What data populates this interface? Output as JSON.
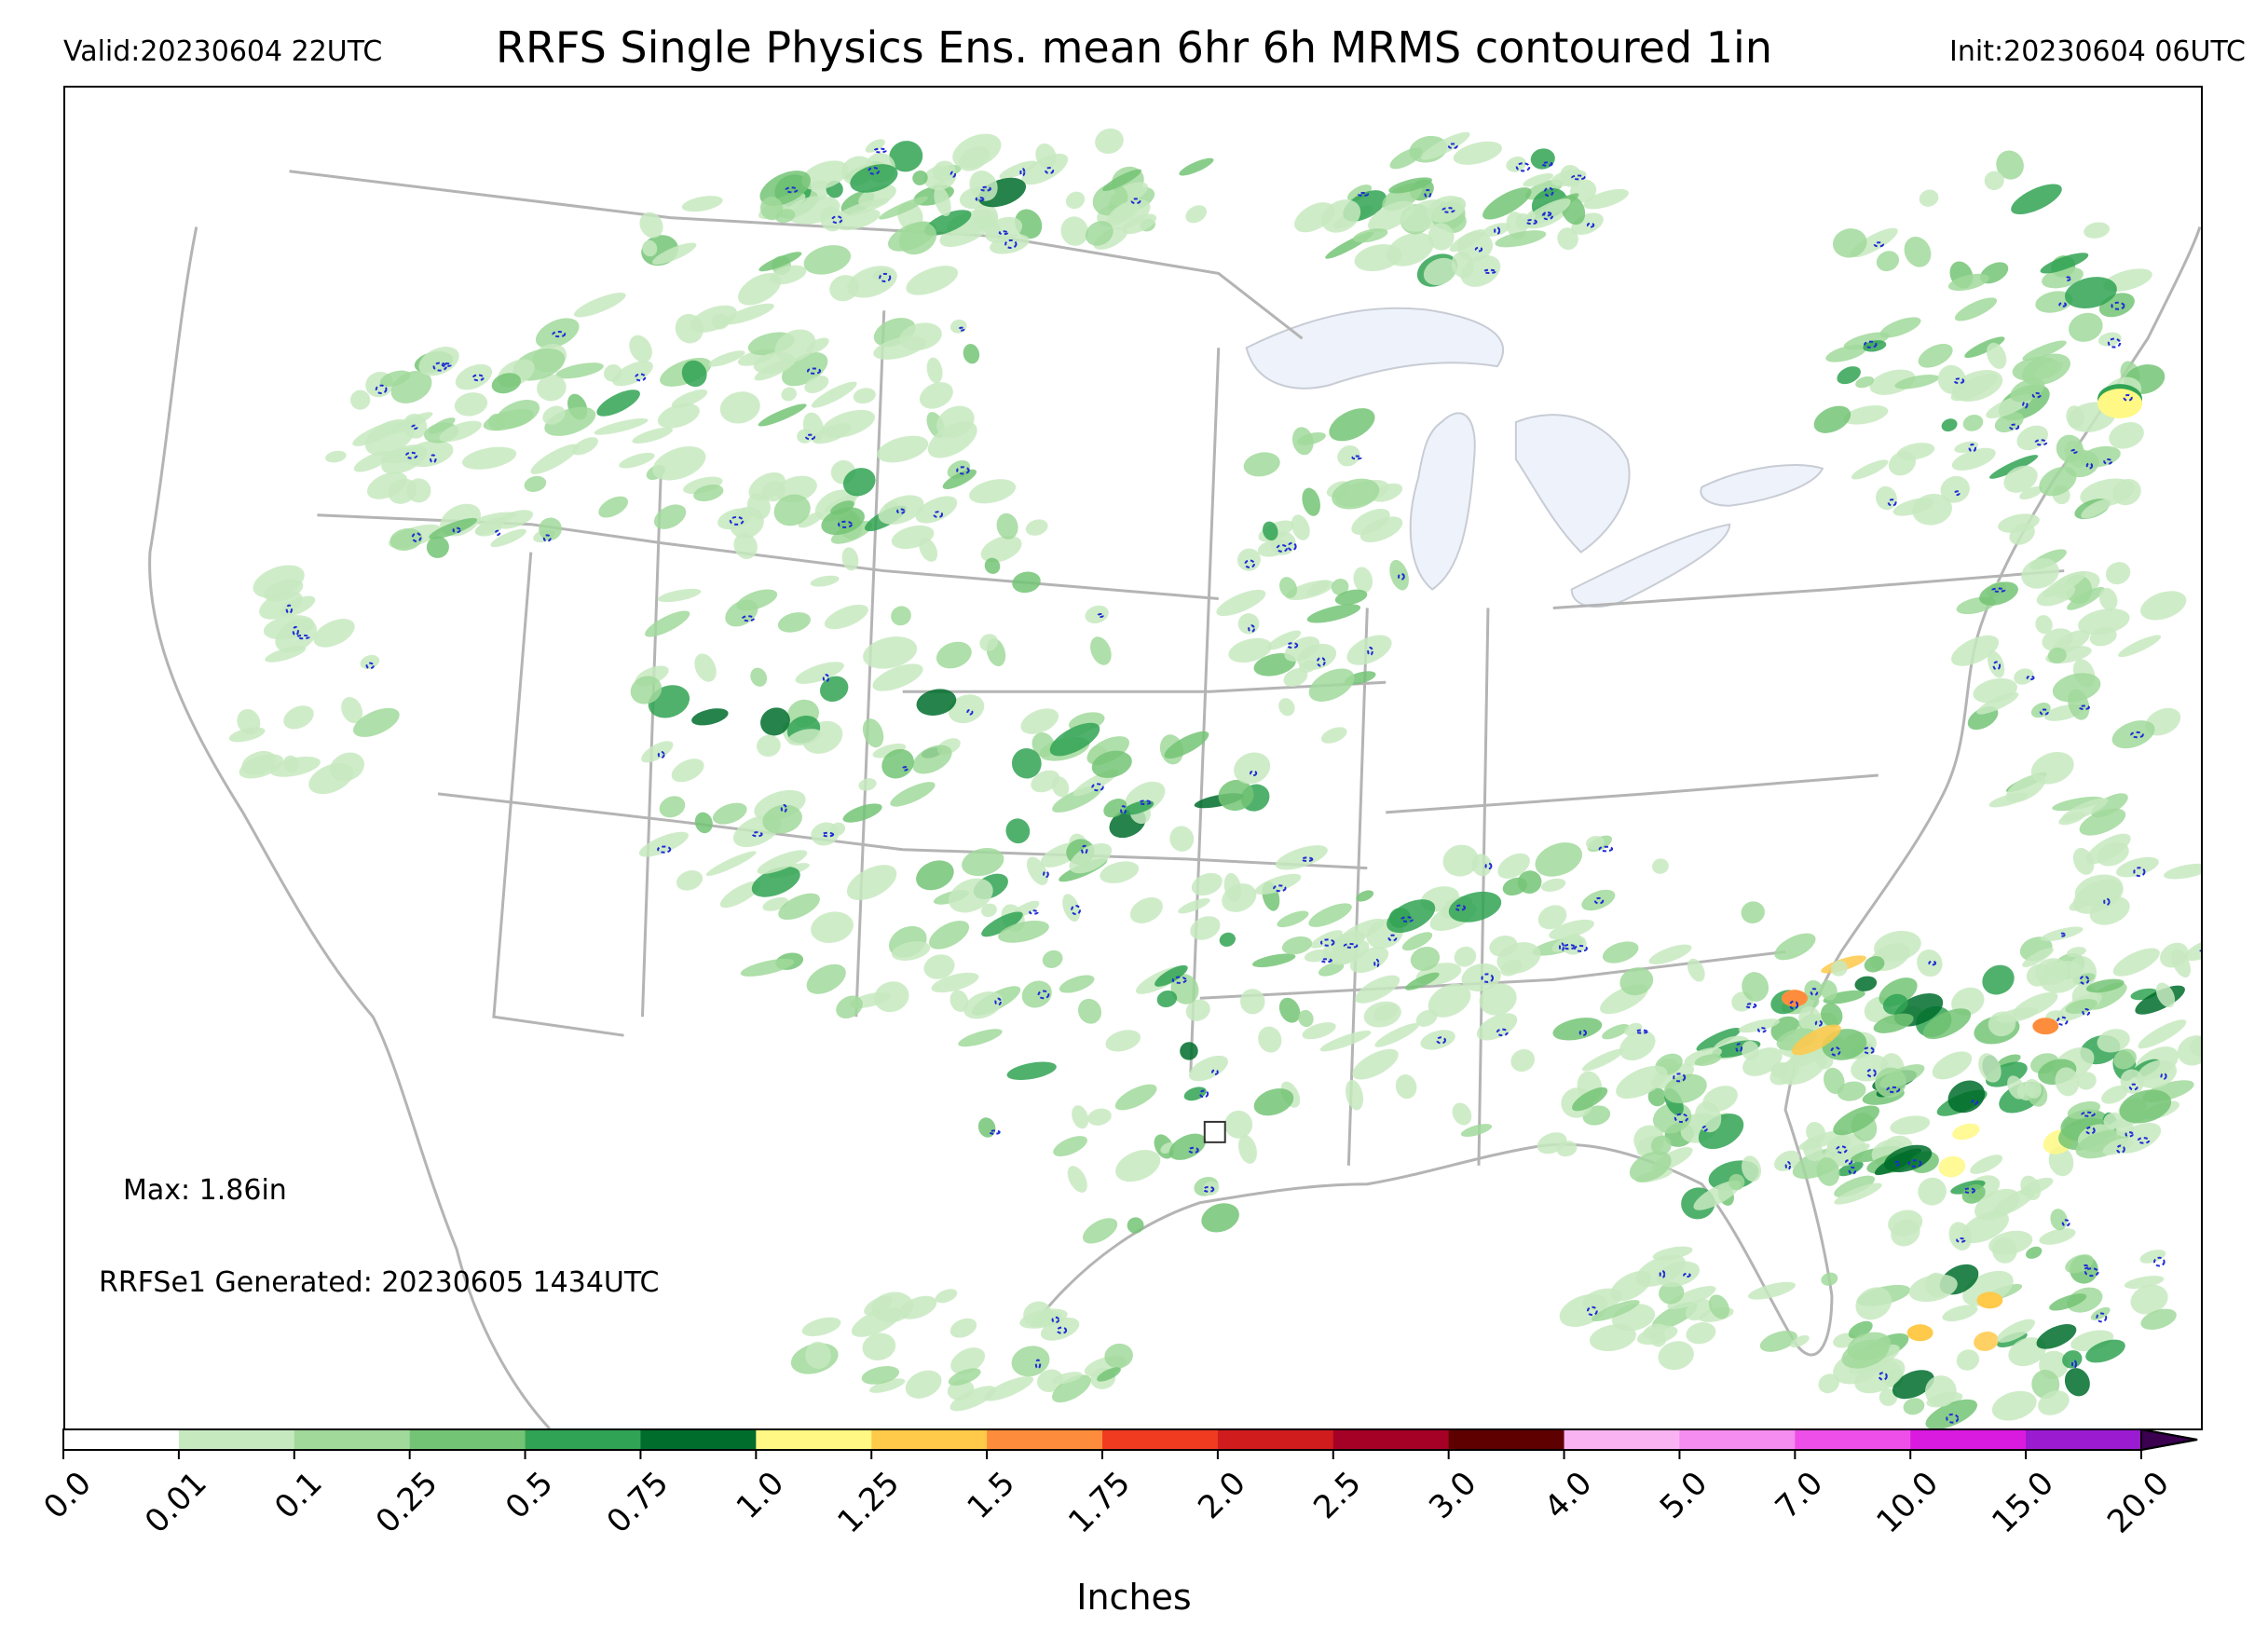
{
  "header": {
    "valid": "Valid:20230604 22UTC",
    "title": "RRFS Single Physics Ens. mean 6hr 6h MRMS contoured 1in",
    "init": "Init:20230604 06UTC"
  },
  "annotations": {
    "max": "Max: 1.86in",
    "generated": "RRFSe1 Generated: 20230605 1434UTC"
  },
  "colorbar": {
    "unit": "Inches",
    "ticks": [
      "0.0",
      "0.01",
      "0.1",
      "0.25",
      "0.5",
      "0.75",
      "1.0",
      "1.25",
      "1.5",
      "1.75",
      "2.0",
      "2.5",
      "3.0",
      "4.0",
      "5.0",
      "7.0",
      "10.0",
      "15.0",
      "20.0"
    ],
    "colors": [
      "#ffffff",
      "#c7e9c0",
      "#a1d99b",
      "#74c476",
      "#31a354",
      "#006d2c",
      "#fff884",
      "#ffc94a",
      "#fd8d3c",
      "#f03b20",
      "#d01c1c",
      "#a50026",
      "#5e0000",
      "#f9b3f2",
      "#f58cf0",
      "#ed4fe8",
      "#d91adf",
      "#9a1bd0"
    ],
    "extend_color": "#3b0050"
  },
  "map": {
    "land_color": "#ffffff",
    "boundary_color": "#b4b4b4",
    "lake_color": "#eef2fa",
    "precip_colors": [
      "#c7e9c0",
      "#a1d99b",
      "#74c476",
      "#31a354",
      "#006d2c",
      "#fff884",
      "#ffc94a",
      "#fd8d3c",
      "#f03b20"
    ],
    "contour_color": "#1f2bd6"
  }
}
